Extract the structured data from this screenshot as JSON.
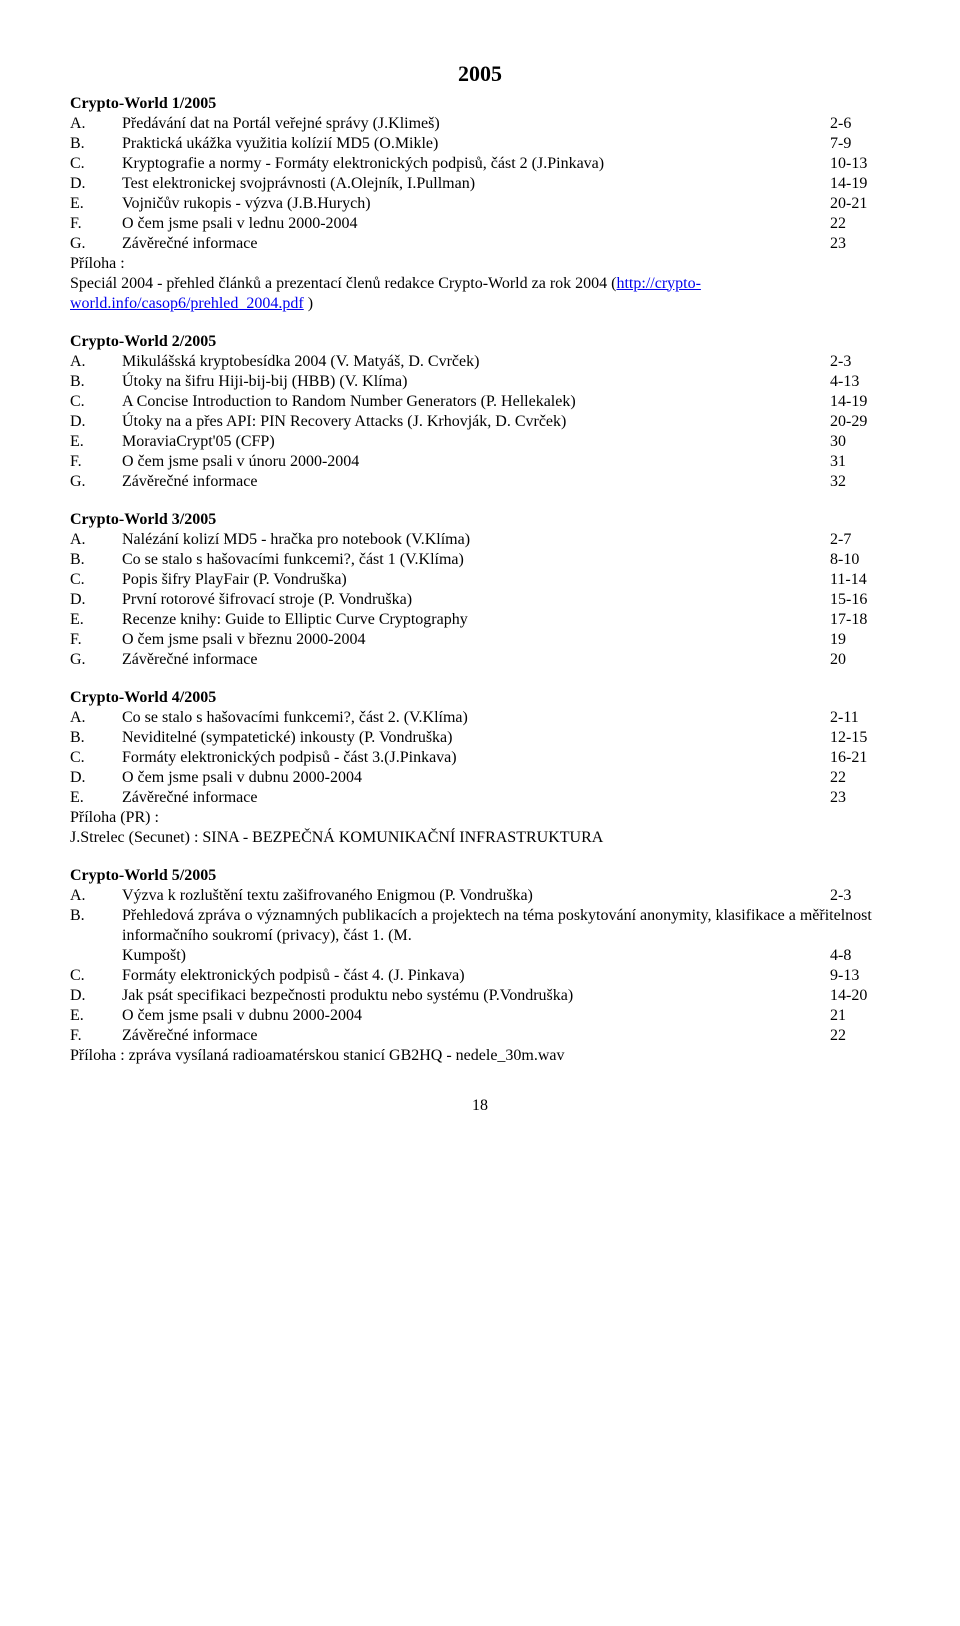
{
  "year": "2005",
  "page_number": "18",
  "link_color": "#0000ee",
  "issues": [
    {
      "title": "Crypto-World 1/2005",
      "items": [
        {
          "l": "A.",
          "t": "Předávání dat na Portál veřejné správy (J.Klimeš)",
          "p": "2-6"
        },
        {
          "l": "B.",
          "t": "Praktická ukážka využitia kolízií MD5 (O.Mikle)",
          "p": "7-9"
        },
        {
          "l": "C.",
          "t": "Kryptografie a normy - Formáty elektronických podpisů, část 2 (J.Pinkava)",
          "p": "10-13"
        },
        {
          "l": "D.",
          "t": "Test elektronickej svojprávnosti (A.Olejník, I.Pullman)",
          "p": "14-19"
        },
        {
          "l": "E.",
          "t": "Vojničův rukopis - výzva (J.B.Hurych)",
          "p": "20-21"
        },
        {
          "l": "F.",
          "t": "O čem jsme psali v lednu 2000-2004",
          "p": "22"
        },
        {
          "l": "G.",
          "t": "Závěrečné informace",
          "p": "23"
        }
      ],
      "appendix_label": "Příloha :",
      "appendix_pre": "Speciál 2004  - přehled článků a prezentací členů redakce Crypto-World za rok 2004 (",
      "appendix_link": "http://crypto-world.info/casop6/prehled_2004.pdf",
      "appendix_post": "  )"
    },
    {
      "title": "Crypto-World 2/2005",
      "items": [
        {
          "l": "A.",
          "t": "Mikulášská kryptobesídka 2004 (V. Matyáš, D. Cvrček)",
          "p": "2-3"
        },
        {
          "l": "B.",
          "t": "Útoky na šifru Hiji-bij-bij (HBB) (V. Klíma)",
          "p": "4-13"
        },
        {
          "l": "C.",
          "t": "A Concise Introduction to Random Number Generators  (P. Hellekalek)",
          "p": "14-19"
        },
        {
          "l": "D.",
          "t": "Útoky na a přes API: PIN Recovery Attacks (J. Krhovják, D. Cvrček)",
          "p": "20-29"
        },
        {
          "l": "E.",
          "t": "MoraviaCrypt'05 (CFP)",
          "p": "30"
        },
        {
          "l": "F.",
          "t": "O čem jsme psali v únoru 2000-2004",
          "p": "31"
        },
        {
          "l": "G.",
          "t": "Závěrečné informace",
          "p": "32"
        }
      ]
    },
    {
      "title": "Crypto-World 3/2005",
      "items": [
        {
          "l": "A.",
          "t": "Nalézání kolizí MD5 - hračka pro notebook (V.Klíma)",
          "p": "2-7"
        },
        {
          "l": "B.",
          "t": "Co se stalo s hašovacími funkcemi?, část 1 (V.Klíma)",
          "p": "8-10"
        },
        {
          "l": "C.",
          "t": "Popis šifry PlayFair (P. Vondruška)",
          "p": "11-14"
        },
        {
          "l": "D.",
          "t": "První rotorové šifrovací stroje (P. Vondruška)",
          "p": "15-16"
        },
        {
          "l": "E.",
          "t": "Recenze knihy: Guide to Elliptic Curve Cryptography",
          "p": "17-18"
        },
        {
          "l": "F.",
          "t": "O čem jsme psali v březnu 2000-2004",
          "p": "19"
        },
        {
          "l": "G.",
          "t": "Závěrečné informace",
          "p": "20"
        }
      ]
    },
    {
      "title": "Crypto-World 4/2005",
      "items": [
        {
          "l": "A.",
          "t": "Co se stalo s hašovacími funkcemi?, část 2. (V.Klíma)",
          "p": "2-11"
        },
        {
          "l": "B.",
          "t": "Neviditelné (sympatetické) inkousty (P. Vondruška)",
          "p": "12-15"
        },
        {
          "l": "C.",
          "t": "Formáty elektronických podpisů - část 3.(J.Pinkava)",
          "p": "16-21"
        },
        {
          "l": "D.",
          "t": "O čem jsme psali v dubnu 2000-2004",
          "p": "22"
        },
        {
          "l": "E.",
          "t": "Závěrečné informace",
          "p": "23"
        }
      ],
      "appendix_label": "Příloha (PR) :",
      "appendix_text": "J.Strelec (Secunet) : SINA - BEZPEČNÁ KOMUNIKAČNÍ INFRASTRUKTURA"
    },
    {
      "title": "Crypto-World 5/2005",
      "items": [
        {
          "l": "A.",
          "t": "Výzva k rozluštění textu zašifrovaného Enigmou (P. Vondruška)",
          "p": "2-3"
        },
        {
          "l": "B.",
          "wrap": true,
          "t1": "Přehledová zpráva o významných publikacích a projektech na téma poskytování anonymity, klasifikace a měřitelnost informačního soukromí (privacy), část 1. (M.",
          "t2": "Kumpošt)",
          "p": "4-8"
        },
        {
          "l": "C.",
          "t": "Formáty elektronických podpisů - část 4. (J. Pinkava)",
          "p": "9-13"
        },
        {
          "l": "D.",
          "t": "Jak psát specifikaci bezpečnosti produktu nebo systému (P.Vondruška)",
          "p": "14-20"
        },
        {
          "l": "E.",
          "t": "O čem jsme psali v dubnu 2000-2004",
          "p": "21"
        },
        {
          "l": "F.",
          "t": "Závěrečné informace",
          "p": "22"
        }
      ],
      "appendix_text_only": "Příloha : zpráva vysílaná radioamatérskou stanicí GB2HQ - nedele_30m.wav"
    }
  ]
}
